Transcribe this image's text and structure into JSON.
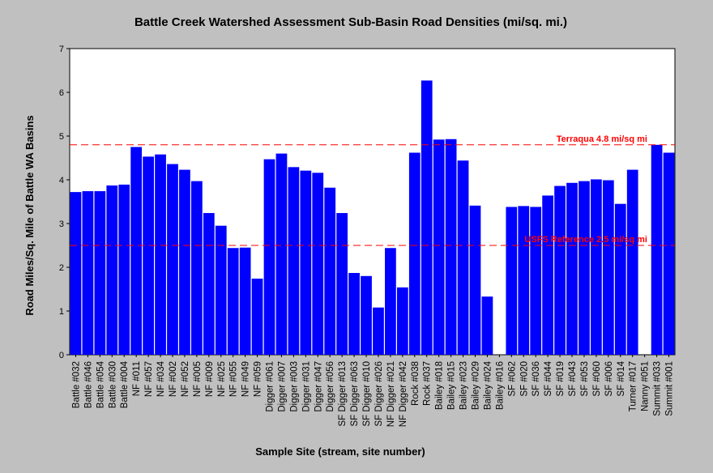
{
  "chart_data": {
    "type": "bar",
    "title": "Battle Creek Watershed Assessment Sub-Basin Road Densities (mi/sq. mi.)",
    "xlabel": "Sample Site (stream, site number)",
    "ylabel": "Road Miles/Sq. Mile of Battle WA Basins",
    "ylim": [
      0,
      7
    ],
    "yticks": [
      "0",
      "1",
      "2",
      "3",
      "4",
      "5",
      "6",
      "7"
    ],
    "bar_color": "#0000ff",
    "grid": false,
    "categories": [
      "Battle #032",
      "Battle #046",
      "Battle #054",
      "Battle #030",
      "Battle #004",
      "NF #011",
      "NF #057",
      "NF #034",
      "NF #002",
      "NF #052",
      "NF #005",
      "NF #009",
      "NF #025",
      "NF #055",
      "NF #049",
      "NF #059",
      "Digger #061",
      "Digger #007",
      "Digger #003",
      "Digger #031",
      "Digger #047",
      "Digger #056",
      "SF Digger #013",
      "SF Digger #063",
      "SF Digger #010",
      "SF Digger #026",
      "NF Digger #021",
      "NF Digger #042",
      "Rock #038",
      "Rock #037",
      "Bailey #018",
      "Bailey #015",
      "Bailey #023",
      "Bailey #029",
      "Bailey #024",
      "Bailey #016",
      "SF #062",
      "SF #020",
      "SF #036",
      "SF #044",
      "SF #019",
      "SF #043",
      "SF #053",
      "SF #060",
      "SF #006",
      "SF #014",
      "Turner #017",
      "Nanny #051",
      "Summit #033",
      "Summit #001"
    ],
    "values": [
      3.72,
      3.74,
      3.74,
      3.87,
      3.89,
      4.75,
      4.53,
      4.58,
      4.36,
      4.23,
      3.97,
      3.24,
      2.95,
      2.44,
      2.45,
      1.74,
      4.47,
      4.6,
      4.29,
      4.21,
      4.16,
      3.82,
      3.24,
      1.87,
      1.8,
      1.08,
      2.44,
      1.54,
      4.62,
      6.27,
      4.92,
      4.93,
      4.44,
      3.41,
      1.33,
      0,
      3.38,
      3.4,
      3.38,
      3.64,
      3.86,
      3.93,
      3.97,
      4.01,
      3.99,
      3.45,
      4.23,
      0,
      4.8,
      4.62
    ],
    "reference_lines": [
      {
        "label": "Terraqua 4.8 mi/sq mi",
        "value": 4.8,
        "color": "#ff0000"
      },
      {
        "label": "USFS Reference 2.5 mi/sq mi",
        "value": 2.5,
        "color": "#ff0000"
      }
    ]
  }
}
